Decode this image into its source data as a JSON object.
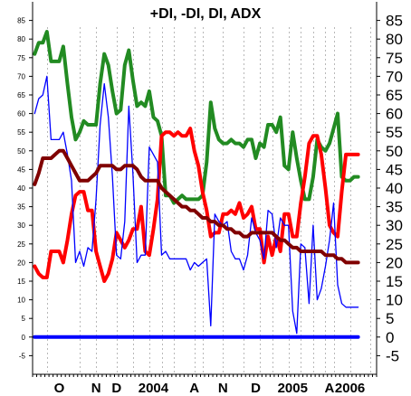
{
  "chart_data": {
    "type": "line",
    "title": "+DI, -DI, DI, ADX",
    "xlabel": "",
    "ylabel": "",
    "ylim": [
      -10,
      90
    ],
    "yticks": [
      -5,
      0,
      5,
      10,
      15,
      20,
      25,
      30,
      35,
      40,
      45,
      50,
      55,
      60,
      65,
      70,
      75,
      80,
      85
    ],
    "grid": true,
    "legend": "none",
    "x_count": 84,
    "x_labels": [
      {
        "label": "O",
        "x": 6
      },
      {
        "label": "N",
        "x": 15
      },
      {
        "label": "D",
        "x": 20
      },
      {
        "label": "2004",
        "x": 29
      },
      {
        "label": "A",
        "x": 39
      },
      {
        "label": "N",
        "x": 46
      },
      {
        "label": "D",
        "x": 54
      },
      {
        "label": "2005",
        "x": 63
      },
      {
        "label": "A",
        "x": 72
      },
      {
        "label": "2006",
        "x": 77
      }
    ],
    "vgrid_x": [
      3,
      11,
      15,
      20,
      24,
      28,
      31,
      34,
      39,
      41,
      46,
      51,
      55,
      58,
      62,
      65,
      68,
      71,
      73,
      77,
      82
    ],
    "series": [
      {
        "color": "#228B22",
        "values": [
          76,
          79,
          79,
          82,
          74,
          74,
          74,
          78,
          68,
          59,
          53,
          55,
          58,
          57,
          57,
          57,
          68,
          76,
          73,
          66,
          60,
          61,
          73,
          77,
          69,
          62,
          63,
          62,
          66,
          59,
          58,
          54,
          38,
          38,
          36,
          37,
          38,
          37,
          37,
          37,
          37,
          38,
          47,
          63,
          56,
          53,
          52,
          52,
          53,
          52,
          52,
          51,
          53,
          53,
          48,
          52,
          51,
          57,
          57,
          55,
          59,
          46,
          45,
          55,
          48,
          42,
          37,
          37,
          43,
          53,
          51,
          50,
          52,
          56,
          60,
          43,
          42,
          42,
          43,
          43
        ]
      },
      {
        "color": "#ff0000",
        "values": [
          19,
          17,
          16,
          16,
          23,
          23,
          23,
          20,
          26,
          33,
          38,
          39,
          39,
          34,
          34,
          23,
          19,
          15,
          17,
          21,
          28,
          26,
          24,
          26,
          29,
          29,
          35,
          23,
          22,
          29,
          37,
          54,
          55,
          55,
          54,
          55,
          54,
          54,
          56,
          50,
          46,
          39,
          34,
          27,
          28,
          28,
          33,
          33,
          34,
          33,
          36,
          32,
          33,
          35,
          29,
          29,
          20,
          27,
          22,
          27,
          23,
          33,
          33,
          27,
          27,
          36,
          43,
          52,
          54,
          54,
          49,
          40,
          30,
          28,
          27,
          39,
          49,
          49,
          49,
          49
        ]
      },
      {
        "color": "#0000ff",
        "values": [
          60,
          64,
          65,
          70,
          53,
          53,
          53,
          55,
          49,
          42,
          20,
          23,
          19,
          24,
          23,
          37,
          57,
          68,
          59,
          43,
          22,
          21,
          31,
          62,
          44,
          20,
          22,
          22,
          51,
          49,
          47,
          22,
          23,
          21,
          21,
          21,
          21,
          21,
          18,
          20,
          19,
          20,
          21,
          3,
          33,
          31,
          30,
          31,
          23,
          21,
          21,
          18,
          22,
          32,
          28,
          26,
          21,
          34,
          33,
          24,
          32,
          30,
          30,
          7,
          1,
          25,
          24,
          9,
          30,
          10,
          13,
          19,
          26,
          36,
          14,
          9,
          8,
          8,
          8,
          8
        ]
      },
      {
        "color": "#800000",
        "values": [
          41,
          44,
          48,
          48,
          48,
          49,
          50,
          50,
          48,
          46,
          44,
          42,
          42,
          42,
          43,
          44,
          46,
          46,
          46,
          46,
          45,
          45,
          46,
          46,
          46,
          45,
          43,
          42,
          42,
          42,
          42,
          40,
          39,
          38,
          37,
          36,
          35,
          35,
          34,
          34,
          33,
          32,
          32,
          31,
          31,
          30,
          30,
          29,
          29,
          28,
          28,
          27,
          27,
          28,
          28,
          28,
          28,
          28,
          28,
          27,
          26,
          26,
          25,
          24,
          24,
          23,
          23,
          23,
          23,
          23,
          23,
          22,
          22,
          22,
          21,
          21,
          20,
          20,
          20,
          20
        ]
      },
      {
        "color": "#0000ff",
        "values": [
          0,
          0,
          0,
          0,
          0,
          0,
          0,
          0,
          0,
          0,
          0,
          0,
          0,
          0,
          0,
          0,
          0,
          0,
          0,
          0,
          0,
          0,
          0,
          0,
          0,
          0,
          0,
          0,
          0,
          0,
          0,
          0,
          0,
          0,
          0,
          0,
          0,
          0,
          0,
          0,
          0,
          0,
          0,
          0,
          0,
          0,
          0,
          0,
          0,
          0,
          0,
          0,
          0,
          0,
          0,
          0,
          0,
          0,
          0,
          0,
          0,
          0,
          0,
          0,
          0,
          0,
          0,
          0,
          0,
          0,
          0,
          0,
          0,
          0,
          0,
          0,
          0,
          0,
          0,
          0
        ]
      }
    ]
  }
}
